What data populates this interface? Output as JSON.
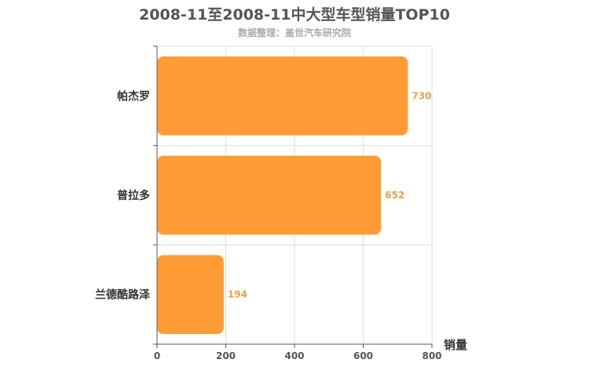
{
  "chart_data": {
    "type": "bar",
    "orientation": "horizontal",
    "title": "2008-11至2008-11中大型车型销量TOP10",
    "subtitle": "数据整理：盖世汽车研究院",
    "xlabel": "销量",
    "ylabel": "",
    "categories": [
      "帕杰罗",
      "普拉多",
      "兰德酷路泽"
    ],
    "values": [
      730,
      652,
      194
    ],
    "xlim": [
      0,
      800
    ],
    "xticks": [
      0,
      200,
      400,
      600,
      800
    ],
    "grid": true,
    "bar_color": "#ff9c35",
    "value_label_color": "#e8a24a"
  }
}
